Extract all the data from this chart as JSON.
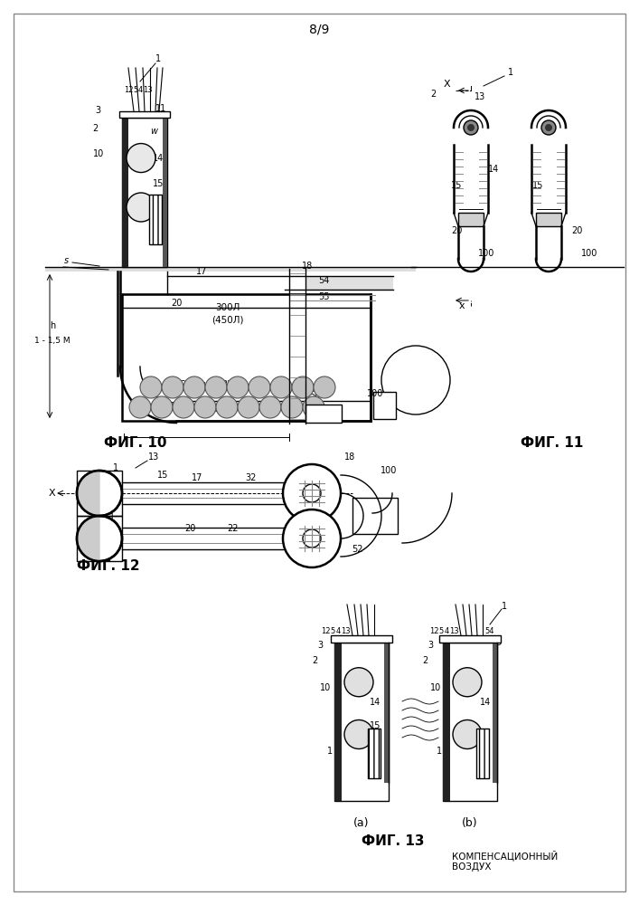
{
  "page_label": "8/9",
  "fig10_label": "ФИГ. 10",
  "fig11_label": "ФИГ. 11",
  "fig12_label": "ФИГ. 12",
  "fig13_label": "ФИГ. 13",
  "fig13_sub": "КОМПЕНСАЦИОННЫЙ\nВОЗДУХ",
  "bg_color": "#ffffff",
  "line_color": "#000000",
  "gray_color": "#888888",
  "light_gray": "#cccccc",
  "fill_gray": "#d0d0d0",
  "dark_fill": "#444444"
}
